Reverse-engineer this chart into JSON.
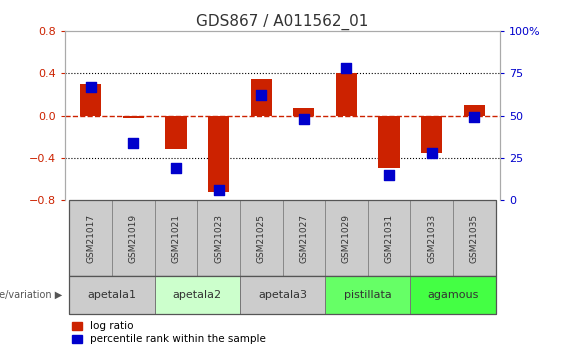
{
  "title": "GDS867 / A011562_01",
  "samples": [
    "GSM21017",
    "GSM21019",
    "GSM21021",
    "GSM21023",
    "GSM21025",
    "GSM21027",
    "GSM21029",
    "GSM21031",
    "GSM21033",
    "GSM21035"
  ],
  "log_ratio": [
    0.3,
    -0.02,
    -0.32,
    -0.72,
    0.35,
    0.07,
    0.4,
    -0.5,
    -0.35,
    0.1
  ],
  "percentile_rank": [
    67,
    34,
    19,
    6,
    62,
    48,
    78,
    15,
    28,
    49
  ],
  "ylim": [
    -0.8,
    0.8
  ],
  "yticks": [
    -0.8,
    -0.4,
    0.0,
    0.4,
    0.8
  ],
  "right_yticks": [
    0,
    25,
    50,
    75,
    100
  ],
  "bar_color": "#cc2200",
  "dot_color": "#0000cc",
  "zero_line_color": "#cc2200",
  "grid_color": "#000000",
  "sample_box_color": "#cccccc",
  "groups": [
    {
      "name": "apetala1",
      "indices": [
        0,
        1
      ],
      "color": "#cccccc"
    },
    {
      "name": "apetala2",
      "indices": [
        2,
        3
      ],
      "color": "#ccffcc"
    },
    {
      "name": "apetala3",
      "indices": [
        4,
        5
      ],
      "color": "#cccccc"
    },
    {
      "name": "pistillata",
      "indices": [
        6,
        7
      ],
      "color": "#66ff66"
    },
    {
      "name": "agamous",
      "indices": [
        8,
        9
      ],
      "color": "#44ff44"
    }
  ],
  "bar_width": 0.5,
  "dot_size": 45,
  "background_color": "#ffffff",
  "legend_red_label": "log ratio",
  "legend_blue_label": "percentile rank within the sample",
  "title_fontsize": 11
}
